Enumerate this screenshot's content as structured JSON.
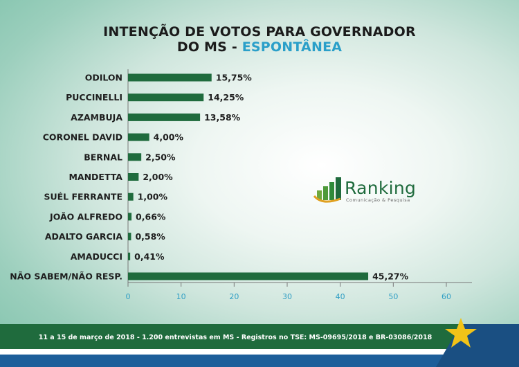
{
  "title": {
    "line1": "INTENÇÃO DE VOTOS PARA GOVERNADOR",
    "line2_main": "DO MS",
    "line2_sep": "-",
    "line2_accent": "ESPONTÂNEA"
  },
  "chart_data": {
    "type": "bar",
    "orientation": "horizontal",
    "title": "INTENÇÃO DE VOTOS PARA GOVERNADOR DO MS - ESPONTÂNEA",
    "categories": [
      "ODILON",
      "PUCCINELLI",
      "AZAMBUJA",
      "CORONEL DAVID",
      "BERNAL",
      "MANDETTA",
      "SUÉL FERRANTE",
      "JOÃO ALFREDO",
      "ADALTO GARCIA",
      "AMADUCCI",
      "NÃO SABEM/NÃO RESP."
    ],
    "values": [
      15.75,
      14.25,
      13.58,
      4.0,
      2.5,
      2.0,
      1.0,
      0.66,
      0.58,
      0.41,
      45.27
    ],
    "value_labels": [
      "15,75%",
      "14,25%",
      "13,58%",
      "4,00%",
      "2,50%",
      "2,00%",
      "1,00%",
      "0,66%",
      "0,58%",
      "0,41%",
      "45,27%"
    ],
    "xlim": [
      0,
      65
    ],
    "xticks": [
      0,
      10,
      20,
      30,
      40,
      50,
      60
    ],
    "xlabel": "",
    "ylabel": "",
    "grid": false,
    "bar_color": "#1f6b3d",
    "highlight_label_color": "#d9352b",
    "highlight_index": 10
  },
  "logo": {
    "name": "Ranking",
    "tagline": "Comunicação & Pesquisa"
  },
  "footer": {
    "text": "11 a 15 de março de 2018 - 1.200 entrevistas em MS - Registros no TSE: MS-09695/2018 e BR-03086/2018"
  },
  "colors": {
    "accent": "#2a9fc9",
    "brand_green": "#1f6b3d",
    "footer_blue": "#1d5e9a",
    "star": "#f2c318"
  }
}
